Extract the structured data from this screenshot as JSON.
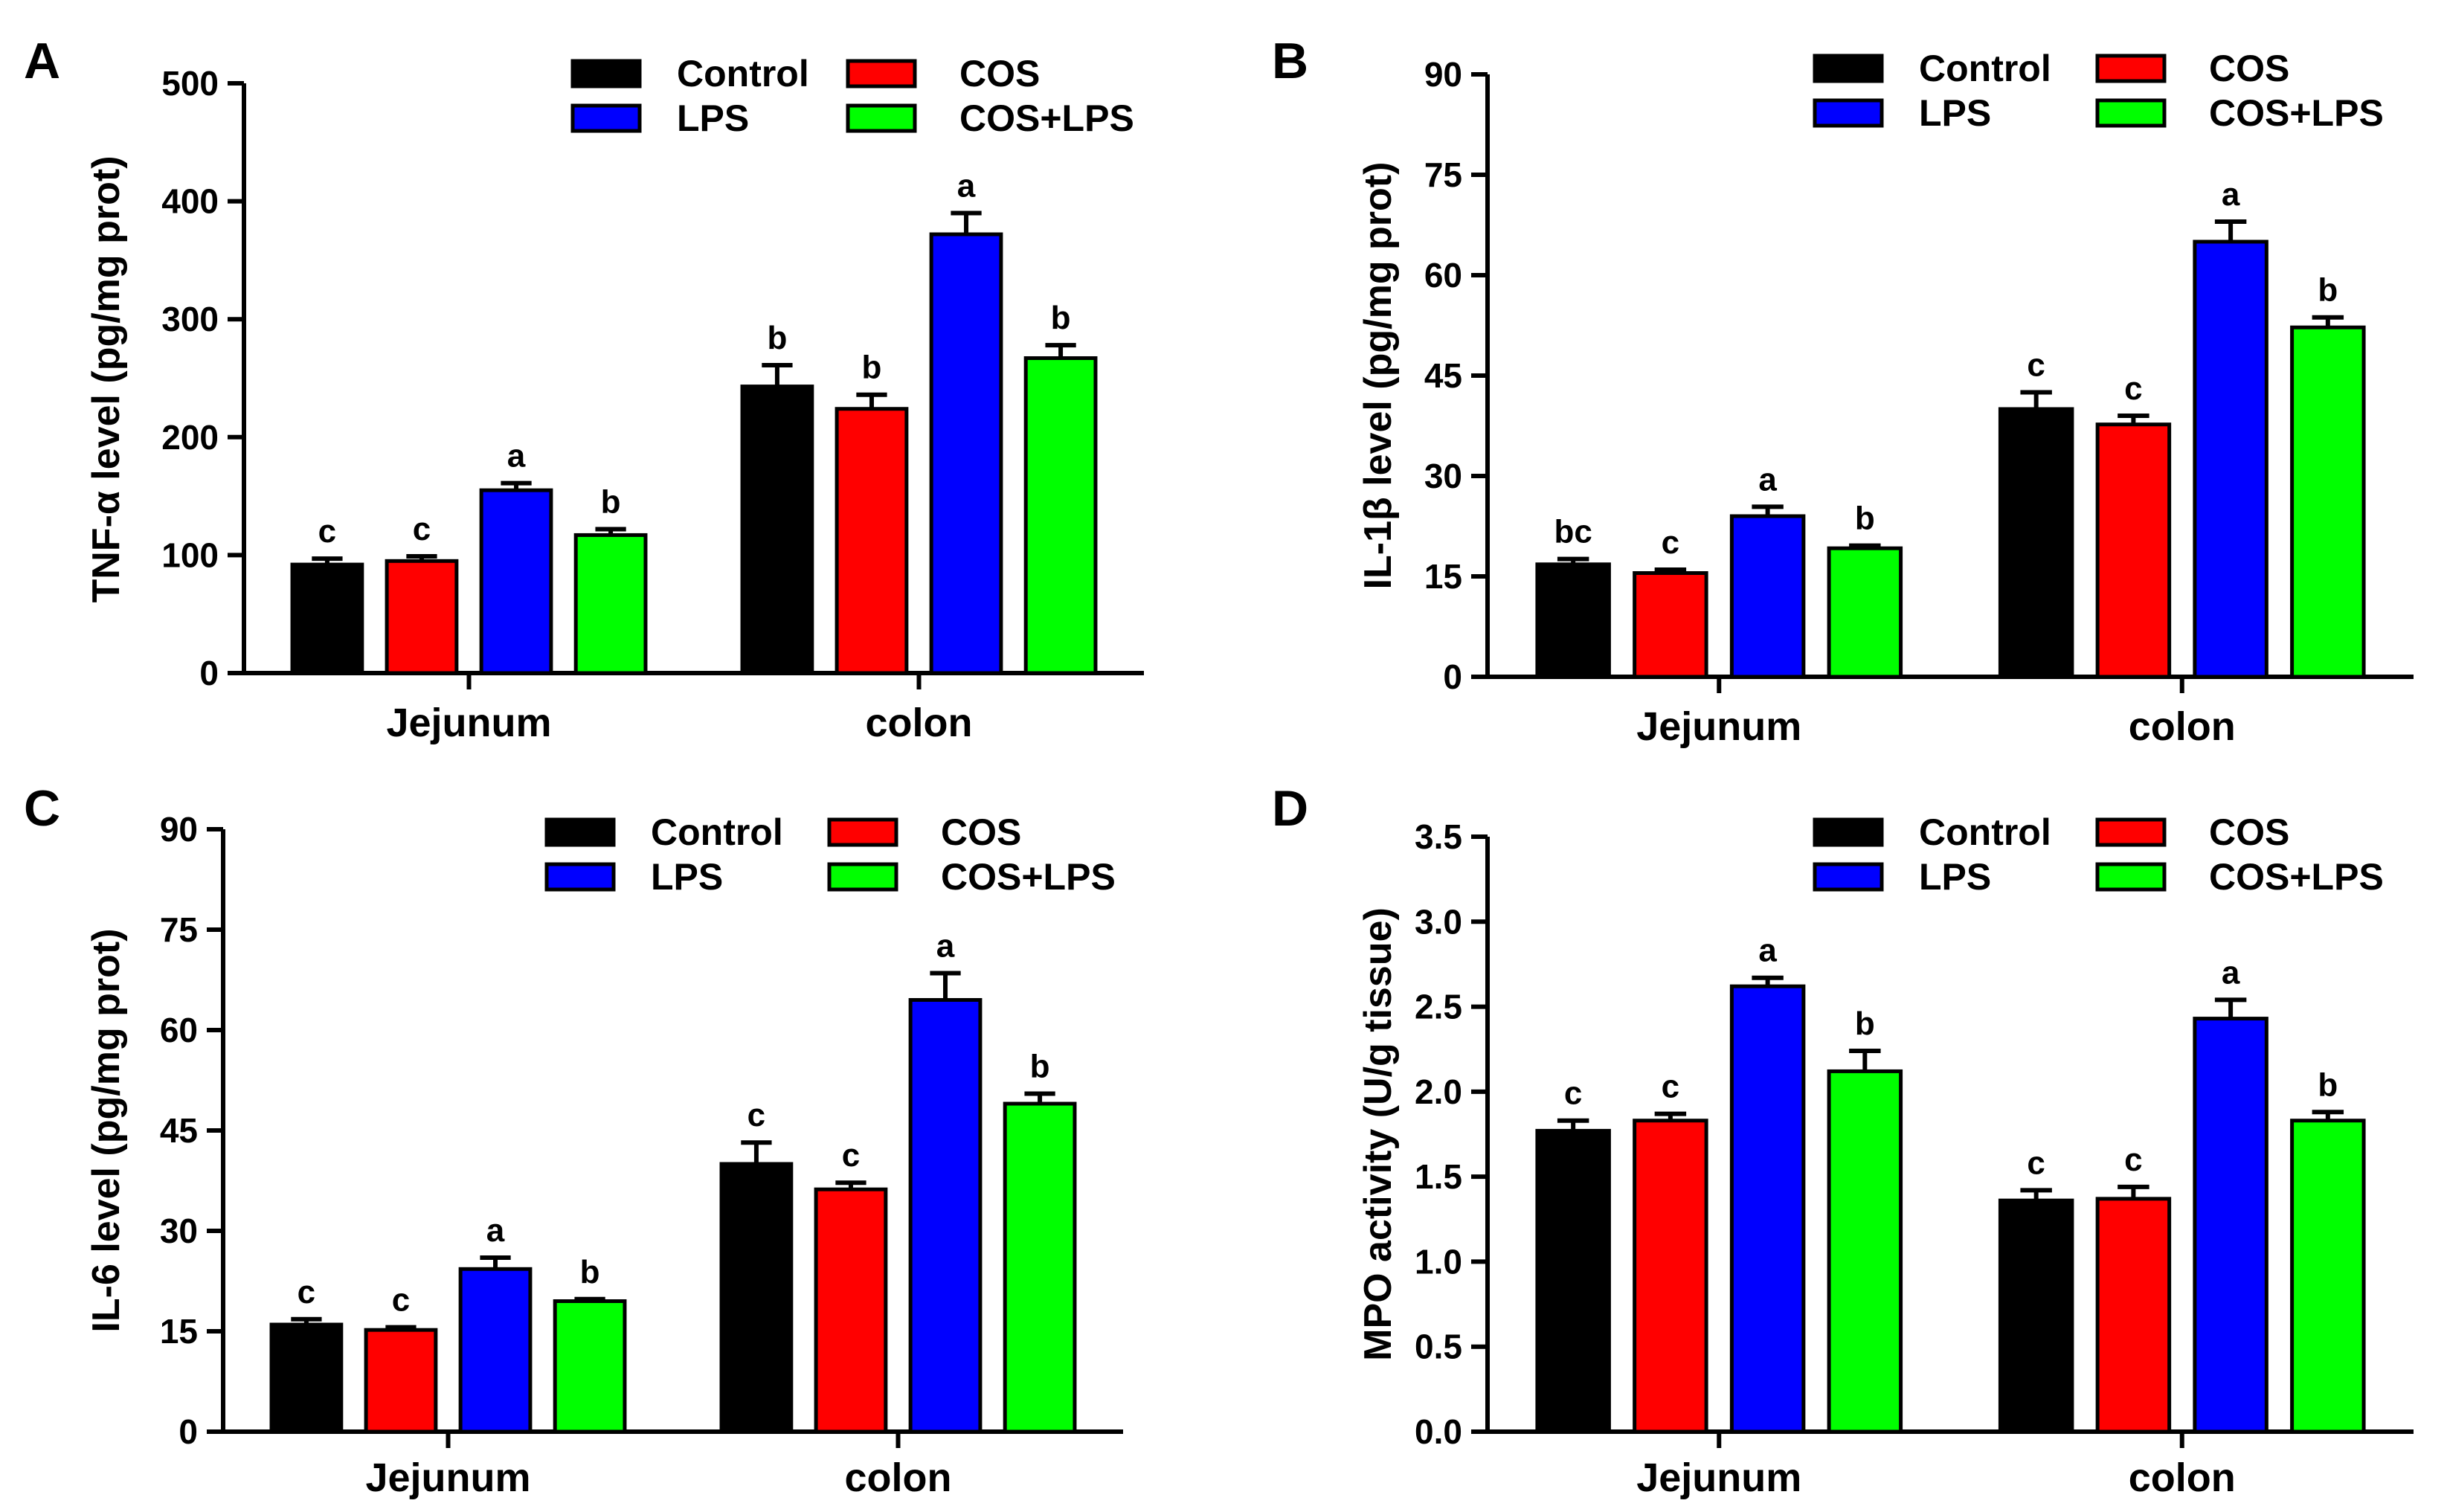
{
  "figure": {
    "background": "#ffffff"
  },
  "chart_data": [
    {
      "panel": "A",
      "type": "bar",
      "categories": [
        "Jejunum",
        "colon"
      ],
      "ylabel": "TNF-α level (pg/mg prot)",
      "yticks": [
        0,
        100,
        200,
        300,
        400,
        500
      ],
      "ylim": [
        0,
        500
      ],
      "legend": [
        "Control",
        "COS",
        "LPS",
        "COS+LPS"
      ],
      "series": [
        {
          "name": "Control",
          "color": "#000000",
          "values": [
            92,
            243
          ],
          "errors": [
            5,
            18
          ],
          "labels": [
            "c",
            "b"
          ]
        },
        {
          "name": "COS",
          "color": "#ff0000",
          "values": [
            95,
            224
          ],
          "errors": [
            4,
            12
          ],
          "labels": [
            "c",
            "b"
          ]
        },
        {
          "name": "LPS",
          "color": "#0000ff",
          "values": [
            155,
            372
          ],
          "errors": [
            6,
            18
          ],
          "labels": [
            "a",
            "a"
          ]
        },
        {
          "name": "COS+LPS",
          "color": "#00ff00",
          "values": [
            117,
            267
          ],
          "errors": [
            5,
            11
          ],
          "labels": [
            "b",
            "b"
          ]
        }
      ]
    },
    {
      "panel": "B",
      "type": "bar",
      "categories": [
        "Jejunum",
        "colon"
      ],
      "ylabel": "IL-1β level (pg/mg prot)",
      "yticks": [
        0,
        15,
        30,
        45,
        60,
        75,
        90
      ],
      "ylim": [
        0,
        90
      ],
      "legend": [
        "Control",
        "COS",
        "LPS",
        "COS+LPS"
      ],
      "series": [
        {
          "name": "Control",
          "color": "#000000",
          "values": [
            16.8,
            40
          ],
          "errors": [
            0.8,
            2.5
          ],
          "labels": [
            "bc",
            "c"
          ]
        },
        {
          "name": "COS",
          "color": "#ff0000",
          "values": [
            15.5,
            37.7
          ],
          "errors": [
            0.5,
            1.3
          ],
          "labels": [
            "c",
            "c"
          ]
        },
        {
          "name": "LPS",
          "color": "#0000ff",
          "values": [
            24,
            65
          ],
          "errors": [
            1.4,
            3
          ],
          "labels": [
            "a",
            "a"
          ]
        },
        {
          "name": "COS+LPS",
          "color": "#00ff00",
          "values": [
            19.2,
            52.2
          ],
          "errors": [
            0.4,
            1.5
          ],
          "labels": [
            "b",
            "b"
          ]
        }
      ]
    },
    {
      "panel": "C",
      "type": "bar",
      "categories": [
        "Jejunum",
        "colon"
      ],
      "ylabel": "IL-6 level (pg/mg prot)",
      "yticks": [
        0,
        15,
        30,
        45,
        60,
        75,
        90
      ],
      "ylim": [
        0,
        90
      ],
      "legend": [
        "Control",
        "COS",
        "LPS",
        "COS+LPS"
      ],
      "series": [
        {
          "name": "Control",
          "color": "#000000",
          "values": [
            16,
            40
          ],
          "errors": [
            0.8,
            3.2
          ],
          "labels": [
            "c",
            "c"
          ]
        },
        {
          "name": "COS",
          "color": "#ff0000",
          "values": [
            15.2,
            36.2
          ],
          "errors": [
            0.4,
            1.0
          ],
          "labels": [
            "c",
            "c"
          ]
        },
        {
          "name": "LPS",
          "color": "#0000ff",
          "values": [
            24.3,
            64.5
          ],
          "errors": [
            1.7,
            4.0
          ],
          "labels": [
            "a",
            "a"
          ]
        },
        {
          "name": "COS+LPS",
          "color": "#00ff00",
          "values": [
            19.5,
            49
          ],
          "errors": [
            0.3,
            1.5
          ],
          "labels": [
            "b",
            "b"
          ]
        }
      ]
    },
    {
      "panel": "D",
      "type": "bar",
      "categories": [
        "Jejunum",
        "colon"
      ],
      "ylabel": "MPO activity (U/g tissue)",
      "yticks": [
        "0.0",
        "0.5",
        "1.0",
        "1.5",
        "2.0",
        "2.5",
        "3.0",
        "3.5"
      ],
      "ylim": [
        0,
        3.5
      ],
      "legend": [
        "Control",
        "COS",
        "LPS",
        "COS+LPS"
      ],
      "series": [
        {
          "name": "Control",
          "color": "#000000",
          "values": [
            1.77,
            1.36
          ],
          "errors": [
            0.06,
            0.06
          ],
          "labels": [
            "c",
            "c"
          ]
        },
        {
          "name": "COS",
          "color": "#ff0000",
          "values": [
            1.83,
            1.37
          ],
          "errors": [
            0.04,
            0.07
          ],
          "labels": [
            "c",
            "c"
          ]
        },
        {
          "name": "LPS",
          "color": "#0000ff",
          "values": [
            2.62,
            2.43
          ],
          "errors": [
            0.05,
            0.11
          ],
          "labels": [
            "a",
            "a"
          ]
        },
        {
          "name": "COS+LPS",
          "color": "#00ff00",
          "values": [
            2.12,
            1.83
          ],
          "errors": [
            0.12,
            0.05
          ],
          "labels": [
            "b",
            "b"
          ]
        }
      ]
    }
  ]
}
